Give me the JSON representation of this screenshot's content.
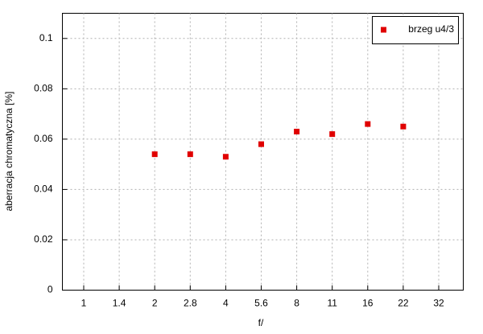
{
  "chart_data": {
    "type": "scatter",
    "x_label": "f/",
    "y_label": "aberracja chromatyczna [%]",
    "categories": [
      "1",
      "1.4",
      "2",
      "2.8",
      "4",
      "5.6",
      "8",
      "11",
      "16",
      "22",
      "32"
    ],
    "series": [
      {
        "name": "brzeg u4/3",
        "color": "#e00000",
        "values": [
          null,
          null,
          0.054,
          0.054,
          0.053,
          0.058,
          0.063,
          0.062,
          0.066,
          0.065,
          null
        ]
      }
    ],
    "ylim": [
      0,
      0.11
    ],
    "yticks": [
      0,
      0.02,
      0.04,
      0.06,
      0.08,
      0.1
    ],
    "grid": true,
    "legend": "top-right"
  }
}
